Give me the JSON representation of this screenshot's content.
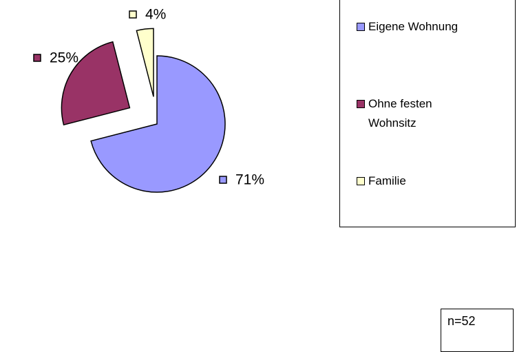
{
  "chart_data": {
    "type": "pie",
    "categories": [
      "Eigene Wohnung",
      "Ohne festen Wohnsitz",
      "Familie"
    ],
    "values": [
      71,
      25,
      4
    ],
    "value_labels": [
      "71%",
      "25%",
      "4%"
    ],
    "colors": [
      "#9999ff",
      "#993366",
      "#ffffcc"
    ],
    "annotation": "n=52"
  }
}
